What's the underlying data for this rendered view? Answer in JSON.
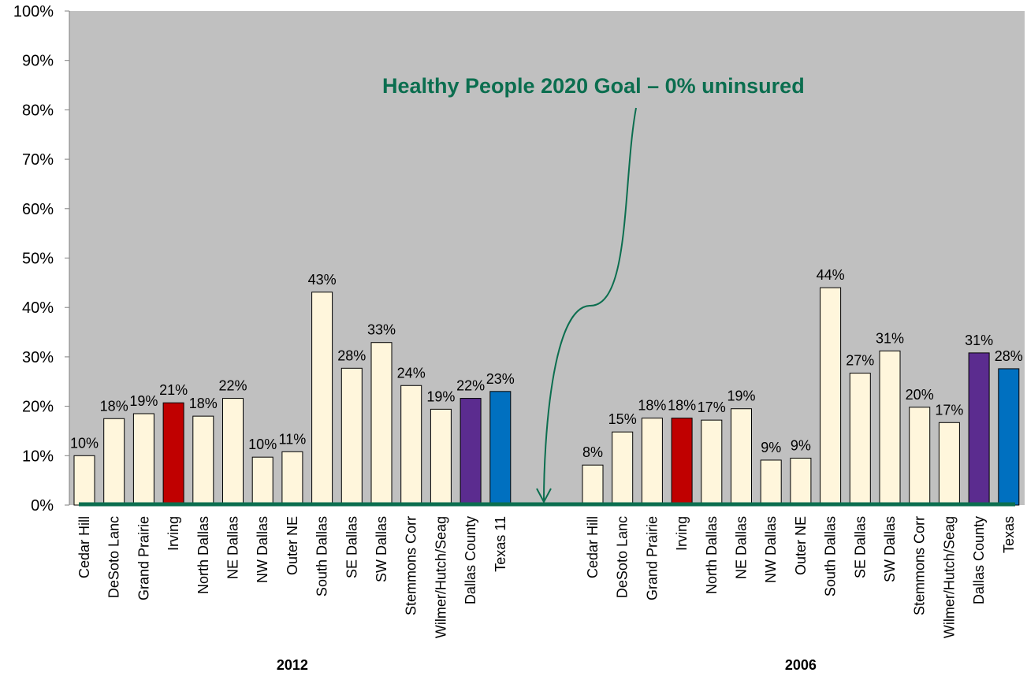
{
  "chart_data": {
    "type": "bar",
    "ylim": [
      0,
      100
    ],
    "yticks": [
      "0%",
      "10%",
      "20%",
      "30%",
      "40%",
      "50%",
      "60%",
      "70%",
      "80%",
      "90%",
      "100%"
    ],
    "groups": [
      {
        "label": "2012",
        "categories": [
          "Cedar Hill",
          "DeSoto Lanc",
          "Grand Prairie",
          "Irving",
          "North Dallas",
          "NE Dallas",
          "NW Dallas",
          "Outer NE",
          "South Dallas",
          "SE Dallas",
          "SW Dallas",
          "Stemmons Corr",
          "Wilmer/Hutch/Seag",
          "Dallas County",
          "Texas 11"
        ],
        "values": [
          10,
          17.5,
          18.5,
          20.7,
          18,
          21.6,
          9.7,
          10.8,
          43.1,
          27.7,
          32.9,
          24.2,
          19.4,
          21.6,
          23
        ],
        "labels": [
          "10%",
          "18%",
          "19%",
          "21%",
          "18%",
          "22%",
          "10%",
          "11%",
          "43%",
          "28%",
          "33%",
          "24%",
          "19%",
          "22%",
          "23%"
        ]
      },
      {
        "label": "2006",
        "categories": [
          "Cedar Hill",
          "DeSoto Lanc",
          "Grand Prairie",
          "Irving",
          "North Dallas",
          "NE Dallas",
          "NW Dallas",
          "Outer NE",
          "South Dallas",
          "SE Dallas",
          "SW Dallas",
          "Stemmons Corr",
          "Wilmer/Hutch/Seag",
          "Dallas County",
          "Texas"
        ],
        "values": [
          8.1,
          14.8,
          17.6,
          17.6,
          17.2,
          19.5,
          9.1,
          9.5,
          44,
          26.7,
          31.2,
          19.8,
          16.7,
          30.8,
          27.6
        ],
        "labels": [
          "8%",
          "15%",
          "18%",
          "18%",
          "17%",
          "19%",
          "9%",
          "9%",
          "44%",
          "27%",
          "31%",
          "20%",
          "17%",
          "31%",
          "28%"
        ]
      }
    ],
    "colors": {
      "default": "#FFF6DC",
      "irving": "#C00000",
      "county": "#5B2C8F",
      "texas": "#0070C0",
      "plot_bg": "#C0C0C0",
      "goal": "#0B6E4F"
    },
    "highlight": {
      "Irving": "irving",
      "Dallas County": "county",
      "Texas 11": "texas",
      "Texas": "texas"
    },
    "annotation": "Healthy People 2020 Goal – 0% uninsured",
    "goal_value": 0,
    "grid": false
  }
}
